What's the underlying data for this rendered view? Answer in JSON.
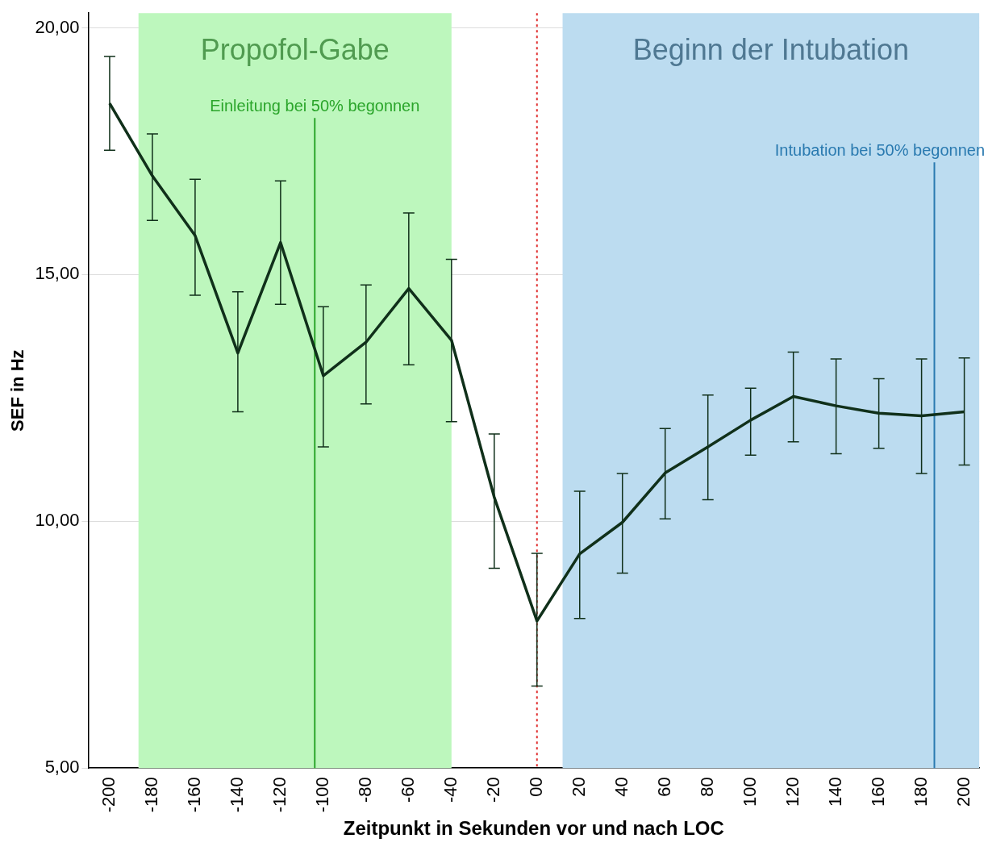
{
  "chart_data": {
    "type": "line",
    "xlabel": "Zeitpunkt in Sekunden vor und nach LOC",
    "ylabel": "SEF in Hz",
    "x": [
      -200,
      -180,
      -160,
      -140,
      -120,
      -100,
      -80,
      -60,
      -40,
      -20,
      0,
      20,
      40,
      60,
      80,
      100,
      120,
      140,
      160,
      180,
      200
    ],
    "series": [
      {
        "color": "#10301a",
        "values": [
          18.47,
          17.0,
          15.79,
          13.41,
          15.65,
          12.95,
          13.63,
          14.72,
          13.67,
          10.49,
          7.98,
          9.34,
          9.98,
          10.98,
          11.51,
          12.05,
          12.53,
          12.34,
          12.19,
          12.14,
          12.22
        ],
        "errors": [
          [
            17.52,
            19.42
          ],
          [
            16.1,
            17.85
          ],
          [
            14.58,
            16.93
          ],
          [
            12.22,
            14.65
          ],
          [
            14.4,
            16.9
          ],
          [
            11.51,
            14.35
          ],
          [
            12.38,
            14.79
          ],
          [
            13.17,
            16.25
          ],
          [
            12.02,
            15.31
          ],
          [
            9.05,
            11.77
          ],
          [
            6.66,
            9.35
          ],
          [
            8.03,
            10.61
          ],
          [
            8.95,
            10.97
          ],
          [
            10.05,
            11.88
          ],
          [
            10.44,
            12.56
          ],
          [
            11.34,
            12.7
          ],
          [
            11.61,
            13.43
          ],
          [
            11.37,
            13.29
          ],
          [
            11.48,
            12.89
          ],
          [
            10.97,
            13.29
          ],
          [
            11.14,
            13.31
          ]
        ]
      }
    ],
    "xlim": [
      -210,
      207
    ],
    "ylim": [
      5,
      20.3
    ],
    "xticks": [
      -200,
      -180,
      -160,
      -140,
      -120,
      -100,
      -80,
      -60,
      -40,
      -20,
      {
        "value": 0,
        "label": "00"
      },
      20,
      40,
      60,
      80,
      100,
      120,
      140,
      160,
      180,
      200
    ],
    "yticks": [
      {
        "value": 5,
        "label": "5,00"
      },
      {
        "value": 10,
        "label": "10,00"
      },
      {
        "value": 15,
        "label": "15,00"
      },
      {
        "value": 20,
        "label": "20,00"
      }
    ],
    "bands": [
      {
        "axis": "x",
        "from": -186.5,
        "to": -40,
        "label": "Propofol-Gabe",
        "color": "#bdf7bd"
      },
      {
        "axis": "x",
        "from": 12,
        "to": 207,
        "label": "Beginn der Intubation",
        "color": "#bcdcf0"
      }
    ],
    "ref_lines": [
      {
        "axis": "x",
        "value": -104,
        "label": "Einleitung bei 50% begonnen",
        "color": "#2aa52a",
        "line_style": "solid"
      },
      {
        "axis": "x",
        "value": 0,
        "color": "#e03030",
        "line_style": "dotted"
      },
      {
        "axis": "x",
        "value": 186,
        "label": "Intubation bei 50% begonnen",
        "color": "#2a7ab0",
        "line_style": "solid"
      }
    ],
    "grid": "y",
    "legend": false,
    "marker": "none",
    "line_style": "solid"
  }
}
